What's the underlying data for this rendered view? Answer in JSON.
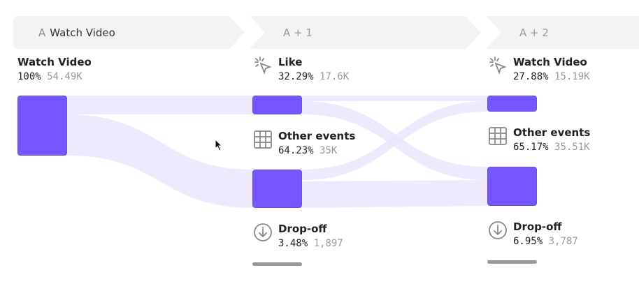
{
  "steps": [
    {
      "prefix": "A",
      "label": "Watch Video"
    },
    {
      "label": "A + 1"
    },
    {
      "label": "A + 2"
    }
  ],
  "columns": [
    {
      "nodes": [
        {
          "name": "Watch Video",
          "pct": "100%",
          "count": "54.49K"
        }
      ]
    },
    {
      "nodes": [
        {
          "name": "Like",
          "icon": "click-icon",
          "pct": "32.29%",
          "count": "17.6K"
        },
        {
          "name": "Other events",
          "icon": "grid-icon",
          "pct": "64.23%",
          "count": "35K"
        },
        {
          "name": "Drop-off",
          "icon": "arrow-down-circle-icon",
          "pct": "3.48%",
          "count": "1,897"
        }
      ]
    },
    {
      "nodes": [
        {
          "name": "Watch Video",
          "icon": "click-icon",
          "pct": "27.88%",
          "count": "15.19K"
        },
        {
          "name": "Other events",
          "icon": "grid-icon",
          "pct": "65.17%",
          "count": "35.51K"
        },
        {
          "name": "Drop-off",
          "icon": "arrow-down-circle-icon",
          "pct": "6.95%",
          "count": "3,787"
        }
      ]
    }
  ],
  "colors": {
    "node": "#7856ff",
    "flow": "#e9e6fb",
    "header": "#f3f3f3"
  }
}
